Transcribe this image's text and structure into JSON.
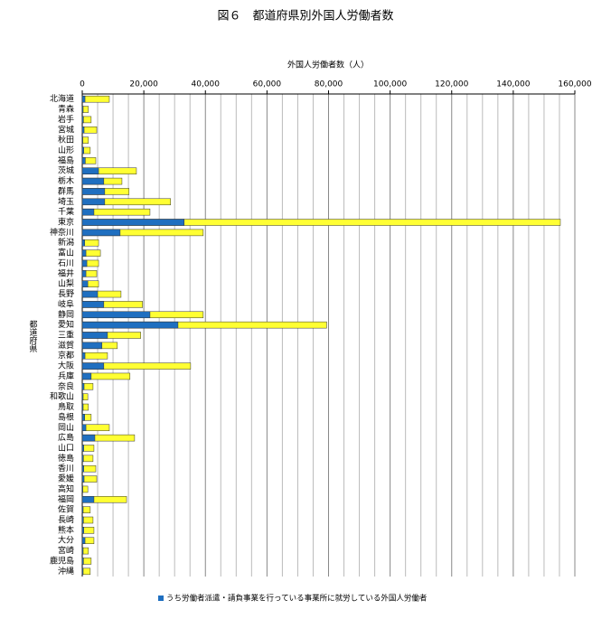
{
  "chart_data": {
    "type": "bar",
    "orientation": "horizontal",
    "overlap": true,
    "title": "図６　都道府県別外国人労働者数",
    "xlabel": "外国人労働者数（人）",
    "ylabel": "都道府県",
    "categories": [
      "北海道",
      "青森",
      "岩手",
      "宮城",
      "秋田",
      "山形",
      "福島",
      "茨城",
      "栃木",
      "群馬",
      "埼玉",
      "千葉",
      "東京",
      "神奈川",
      "新潟",
      "富山",
      "石川",
      "福井",
      "山梨",
      "長野",
      "岐阜",
      "静岡",
      "愛知",
      "三重",
      "滋賀",
      "京都",
      "大阪",
      "兵庫",
      "奈良",
      "和歌山",
      "鳥取",
      "島根",
      "岡山",
      "広島",
      "山口",
      "徳島",
      "香川",
      "愛媛",
      "高知",
      "福岡",
      "佐賀",
      "長崎",
      "熊本",
      "大分",
      "宮崎",
      "鹿児島",
      "沖縄"
    ],
    "series": [
      {
        "name": "うち労働者派遣・請負事業を行っている事業所に就労している外国人労働者",
        "color": "#1f6fc0",
        "values": [
          900,
          300,
          400,
          600,
          200,
          500,
          1000,
          5300,
          7000,
          7300,
          7300,
          3800,
          33100,
          12300,
          800,
          1200,
          1500,
          1200,
          1800,
          5000,
          7000,
          22000,
          31100,
          8200,
          6400,
          900,
          7000,
          2900,
          600,
          300,
          300,
          800,
          1200,
          4100,
          500,
          400,
          500,
          600,
          200,
          3800,
          300,
          400,
          500,
          900,
          300,
          400,
          300
        ]
      },
      {
        "color": "#ffff33",
        "values": [
          8800,
          2000,
          2900,
          4700,
          2000,
          2600,
          4400,
          17600,
          12900,
          15200,
          28700,
          22000,
          155300,
          39300,
          5300,
          5900,
          5300,
          4700,
          5300,
          12600,
          19600,
          39300,
          79400,
          19000,
          11400,
          8200,
          35200,
          15500,
          3500,
          1800,
          2000,
          2900,
          8800,
          17000,
          3800,
          3500,
          4400,
          4700,
          1800,
          14400,
          2600,
          3500,
          3800,
          3800,
          2000,
          2900,
          2600
        ]
      }
    ],
    "xlim": [
      0,
      160000
    ],
    "xticks": [
      0,
      {
        "value": 20000,
        "label": "20,000"
      },
      {
        "value": 40000,
        "label": "40,000"
      },
      {
        "value": 60000,
        "label": "60,000"
      },
      {
        "value": 80000,
        "label": "80,000"
      },
      {
        "value": 100000,
        "label": "100,000"
      },
      {
        "value": 120000,
        "label": "120,000"
      },
      {
        "value": 140000,
        "label": "140,000"
      },
      {
        "value": 160000,
        "label": "160,000"
      }
    ],
    "xgrid": [
      5000,
      10000,
      15000,
      25000,
      30000,
      35000,
      45000,
      50000,
      55000,
      65000,
      70000,
      75000,
      85000,
      90000,
      95000,
      105000,
      110000,
      115000,
      125000,
      130000,
      135000,
      145000,
      150000,
      155000
    ],
    "grid": true,
    "legend": "bottom"
  }
}
